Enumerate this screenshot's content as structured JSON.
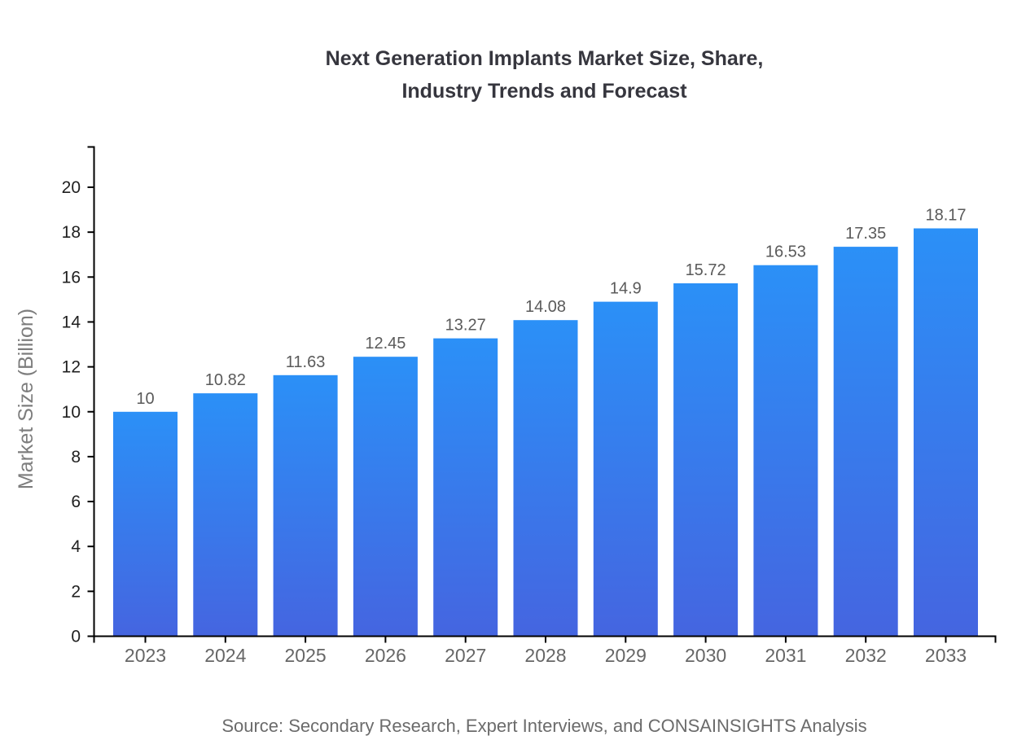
{
  "title_lines": [
    "Next Generation Implants Market Size, Share,",
    "Industry Trends and Forecast"
  ],
  "source_note": "Source: Secondary Research, Expert Interviews, and CONSAINSIGHTS Analysis",
  "chart_data": {
    "type": "bar",
    "title": "Next Generation Implants Market Size, Share, Industry Trends and Forecast",
    "categories": [
      "2023",
      "2024",
      "2025",
      "2026",
      "2027",
      "2028",
      "2029",
      "2030",
      "2031",
      "2032",
      "2033"
    ],
    "values": [
      10,
      10.82,
      11.63,
      12.45,
      13.27,
      14.08,
      14.9,
      15.72,
      16.53,
      17.35,
      18.17
    ],
    "value_labels": [
      "10",
      "10.82",
      "11.63",
      "12.45",
      "13.27",
      "14.08",
      "14.9",
      "15.72",
      "16.53",
      "17.35",
      "18.17"
    ],
    "xlabel": "",
    "ylabel": "Market Size (Billion)",
    "ylim": [
      0,
      21.8
    ],
    "yticks": [
      0,
      2,
      4,
      6,
      8,
      10,
      12,
      14,
      16,
      18,
      20
    ],
    "grid": false,
    "legend": false,
    "colors": {
      "bar_gradient_top": "#2B90F7",
      "bar_gradient_bottom": "#4565E0",
      "axis_line": "#000000",
      "y_tick_label": "#1f1f1f",
      "x_tick_label": "#666666",
      "value_label": "#5a5a5a",
      "axis_title": "#7d7d7d",
      "title": "#36363e",
      "source": "#6b6b6b"
    }
  }
}
